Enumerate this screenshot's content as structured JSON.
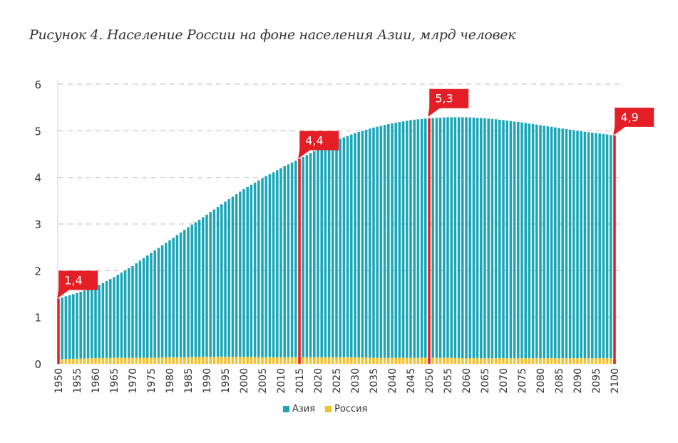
{
  "title": "Рисунок 4. Население России на фоне населения Азии, млрд человек",
  "legend": [
    {
      "label": "Азия",
      "color": "#1aa6b7"
    },
    {
      "label": "Россия",
      "color": "#f2c12e"
    }
  ],
  "colors": {
    "asia": "#1aa6b7",
    "russia": "#f2c12e",
    "highlight": "#e31e24",
    "grid": "#bbbbbb",
    "axis": "#999999",
    "text": "#333333"
  },
  "chart_data": {
    "type": "bar",
    "stacked": true,
    "title": "Рисунок 4. Население России на фоне населения Азии, млрд человек",
    "xlabel": "",
    "ylabel": "",
    "ylim": [
      0,
      6
    ],
    "yticks": [
      0,
      1,
      2,
      3,
      4,
      5,
      6
    ],
    "xtick_labels": [
      "1950",
      "1955",
      "1960",
      "1965",
      "1970",
      "1975",
      "1980",
      "1985",
      "1990",
      "1995",
      "2000",
      "2005",
      "2010",
      "2015",
      "2020",
      "2025",
      "2030",
      "2035",
      "2040",
      "2045",
      "2050",
      "2055",
      "2060",
      "2065",
      "2070",
      "2075",
      "2080",
      "2085",
      "2090",
      "2095",
      "2100"
    ],
    "grid": "horizontal dashed",
    "legend_position": "bottom",
    "anchor_years": [
      1950,
      1955,
      1960,
      1965,
      1970,
      1975,
      1980,
      1985,
      1990,
      1995,
      2000,
      2005,
      2010,
      2015,
      2020,
      2025,
      2030,
      2035,
      2040,
      2045,
      2050,
      2055,
      2060,
      2065,
      2070,
      2075,
      2080,
      2085,
      2090,
      2095,
      2100
    ],
    "series": [
      {
        "name": "Азия",
        "values": [
          1.4,
          1.52,
          1.65,
          1.86,
          2.1,
          2.38,
          2.65,
          2.93,
          3.2,
          3.48,
          3.75,
          3.98,
          4.2,
          4.4,
          4.6,
          4.8,
          4.95,
          5.07,
          5.16,
          5.23,
          5.27,
          5.29,
          5.29,
          5.27,
          5.23,
          5.18,
          5.12,
          5.06,
          5.0,
          4.95,
          4.9
        ]
      },
      {
        "name": "Россия",
        "values": [
          0.1,
          0.11,
          0.12,
          0.13,
          0.13,
          0.13,
          0.14,
          0.14,
          0.15,
          0.15,
          0.15,
          0.14,
          0.14,
          0.14,
          0.14,
          0.14,
          0.14,
          0.13,
          0.13,
          0.13,
          0.13,
          0.13,
          0.12,
          0.12,
          0.12,
          0.12,
          0.12,
          0.12,
          0.12,
          0.12,
          0.12
        ]
      }
    ],
    "annotations": [
      {
        "year": 1950,
        "label": "1,4",
        "value": 1.4
      },
      {
        "year": 2015,
        "label": "4,4",
        "value": 4.4
      },
      {
        "year": 2050,
        "label": "5,3",
        "value": 5.3
      },
      {
        "year": 2100,
        "label": "4,9",
        "value": 4.9
      }
    ]
  }
}
